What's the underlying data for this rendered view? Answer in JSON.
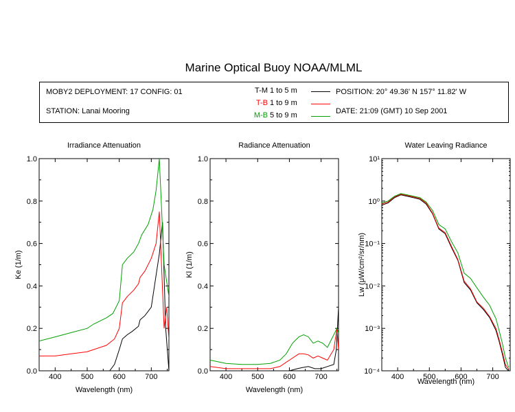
{
  "title": "Marine Optical Buoy NOAA/MLML",
  "info": {
    "deployment": "MOBY2 DEPLOYMENT: 17 CONFIG: 01",
    "station": "STATION: Lanai Mooring",
    "position": "POSITION: 20° 49.36' N   157° 11.82' W",
    "date": "DATE: 21:09 (GMT) 10 Sep 2001"
  },
  "legend": [
    {
      "code": "T-M",
      "range": "1 to 5  m",
      "color": "#000000"
    },
    {
      "code": "T-B",
      "range": "1 to 9  m",
      "color": "#ff0000"
    },
    {
      "code": "M-B",
      "range": "5 to 9  m",
      "color": "#00a000"
    }
  ],
  "chart_data": [
    {
      "type": "line",
      "title": "Irradiance Attenuation",
      "xlabel": "Wavelength (nm)",
      "ylabel": "Ke  (1/m)",
      "xlim": [
        350,
        755
      ],
      "ylim": [
        0,
        1.0
      ],
      "xticks": [
        "400",
        "500",
        "600",
        "700"
      ],
      "yticks": [
        "0.0",
        "0.2",
        "0.4",
        "0.6",
        "0.8",
        "1.0"
      ],
      "series": [
        {
          "name": "T-M",
          "color": "#000000",
          "x": [
            350,
            400,
            450,
            500,
            540,
            570,
            585,
            600,
            610,
            625,
            640,
            660,
            665,
            680,
            700,
            715,
            725,
            735,
            745,
            755
          ],
          "y": [
            0,
            0,
            0,
            0,
            0,
            0,
            0.03,
            0.1,
            0.15,
            0.17,
            0.185,
            0.21,
            0.24,
            0.26,
            0.3,
            0.45,
            0.55,
            0.7,
            0.2,
            0
          ]
        },
        {
          "name": "T-B",
          "color": "#ff0000",
          "x": [
            350,
            400,
            450,
            500,
            520,
            560,
            585,
            600,
            610,
            625,
            645,
            660,
            665,
            680,
            700,
            715,
            725,
            740,
            748,
            755
          ],
          "y": [
            0.07,
            0.07,
            0.08,
            0.09,
            0.1,
            0.12,
            0.15,
            0.2,
            0.32,
            0.35,
            0.38,
            0.41,
            0.44,
            0.47,
            0.53,
            0.6,
            0.75,
            0.2,
            0.3,
            0.15
          ]
        },
        {
          "name": "M-B",
          "color": "#00a000",
          "x": [
            350,
            400,
            450,
            500,
            520,
            560,
            580,
            600,
            610,
            625,
            645,
            660,
            670,
            690,
            705,
            715,
            725,
            740,
            750,
            755
          ],
          "y": [
            0.14,
            0.16,
            0.18,
            0.2,
            0.22,
            0.25,
            0.27,
            0.33,
            0.5,
            0.53,
            0.56,
            0.6,
            0.64,
            0.69,
            0.76,
            0.85,
            1.0,
            0.5,
            0.4,
            0.35
          ]
        }
      ]
    },
    {
      "type": "line",
      "title": "Radiance Attenuation",
      "xlabel": "Wavelength (nm)",
      "ylabel": "Kl  (1/m)",
      "xlim": [
        350,
        755
      ],
      "ylim": [
        0,
        1.0
      ],
      "xticks": [
        "400",
        "500",
        "600",
        "700"
      ],
      "yticks": [
        "0.0",
        "0.2",
        "0.4",
        "0.6",
        "0.8",
        "1.0"
      ],
      "series": [
        {
          "name": "T-M",
          "color": "#000000",
          "x": [
            350,
            400,
            450,
            500,
            550,
            580,
            600,
            625,
            640,
            660,
            680,
            700,
            720,
            740,
            748,
            755
          ],
          "y": [
            0,
            0,
            0,
            0,
            0,
            0,
            0,
            0.01,
            0.015,
            0.02,
            0.01,
            0.01,
            0.02,
            0.03,
            0.1,
            0.3
          ]
        },
        {
          "name": "T-B",
          "color": "#ff0000",
          "x": [
            350,
            400,
            450,
            500,
            540,
            570,
            590,
            610,
            630,
            645,
            660,
            675,
            690,
            705,
            720,
            740,
            750,
            755
          ],
          "y": [
            0.02,
            0.01,
            0.01,
            0.01,
            0.01,
            0.02,
            0.04,
            0.06,
            0.08,
            0.08,
            0.075,
            0.06,
            0.07,
            0.06,
            0.05,
            0.1,
            0.2,
            0.1
          ]
        },
        {
          "name": "M-B",
          "color": "#00a000",
          "x": [
            350,
            400,
            450,
            500,
            540,
            570,
            590,
            610,
            630,
            645,
            660,
            675,
            690,
            705,
            720,
            740,
            750,
            755
          ],
          "y": [
            0.05,
            0.035,
            0.03,
            0.03,
            0.035,
            0.05,
            0.08,
            0.13,
            0.16,
            0.17,
            0.16,
            0.13,
            0.14,
            0.13,
            0.11,
            0.17,
            0.2,
            0.18
          ]
        }
      ]
    },
    {
      "type": "line",
      "title": "Water Leaving Radiance",
      "xlabel": "Wavelength (nm)",
      "ylabel": "Lw  (μW/cm²/sr/nm)",
      "yscale": "log",
      "xlim": [
        350,
        755
      ],
      "ylim": [
        0.0001,
        10
      ],
      "xticks": [
        "400",
        "500",
        "600",
        "700"
      ],
      "yticks": [
        "10⁻⁴",
        "10⁻³",
        "10⁻²",
        "10⁻¹",
        "10⁰",
        "10¹"
      ],
      "series": [
        {
          "name": "T-M",
          "color": "#000000",
          "x": [
            350,
            370,
            390,
            410,
            430,
            450,
            470,
            490,
            510,
            530,
            550,
            570,
            590,
            610,
            630,
            650,
            670,
            690,
            710,
            720,
            730,
            740,
            750
          ],
          "y": [
            0.8,
            0.9,
            1.2,
            1.4,
            1.3,
            1.2,
            1.1,
            0.85,
            0.5,
            0.22,
            0.17,
            0.08,
            0.04,
            0.012,
            0.008,
            0.004,
            0.0028,
            0.0018,
            0.0009,
            0.0005,
            0.00025,
            0.00012,
            0.0001
          ]
        },
        {
          "name": "T-B",
          "color": "#ff0000",
          "x": [
            350,
            370,
            390,
            410,
            430,
            450,
            470,
            490,
            510,
            530,
            550,
            570,
            590,
            610,
            630,
            650,
            670,
            690,
            710,
            720,
            730,
            740,
            750
          ],
          "y": [
            0.85,
            0.95,
            1.25,
            1.45,
            1.35,
            1.25,
            1.15,
            0.9,
            0.52,
            0.23,
            0.18,
            0.085,
            0.042,
            0.013,
            0.0085,
            0.0042,
            0.003,
            0.0019,
            0.001,
            0.00055,
            0.00028,
            0.00014,
            0.00011
          ]
        },
        {
          "name": "M-B",
          "color": "#00a000",
          "x": [
            350,
            370,
            390,
            410,
            430,
            450,
            470,
            490,
            510,
            530,
            550,
            570,
            590,
            610,
            630,
            650,
            670,
            690,
            710,
            720,
            730,
            740,
            750
          ],
          "y": [
            0.9,
            1.0,
            1.3,
            1.5,
            1.4,
            1.3,
            1.2,
            0.95,
            0.6,
            0.28,
            0.22,
            0.11,
            0.06,
            0.02,
            0.015,
            0.009,
            0.0055,
            0.0035,
            0.0017,
            0.0009,
            0.00045,
            0.0002,
            0.00012
          ]
        }
      ]
    }
  ]
}
